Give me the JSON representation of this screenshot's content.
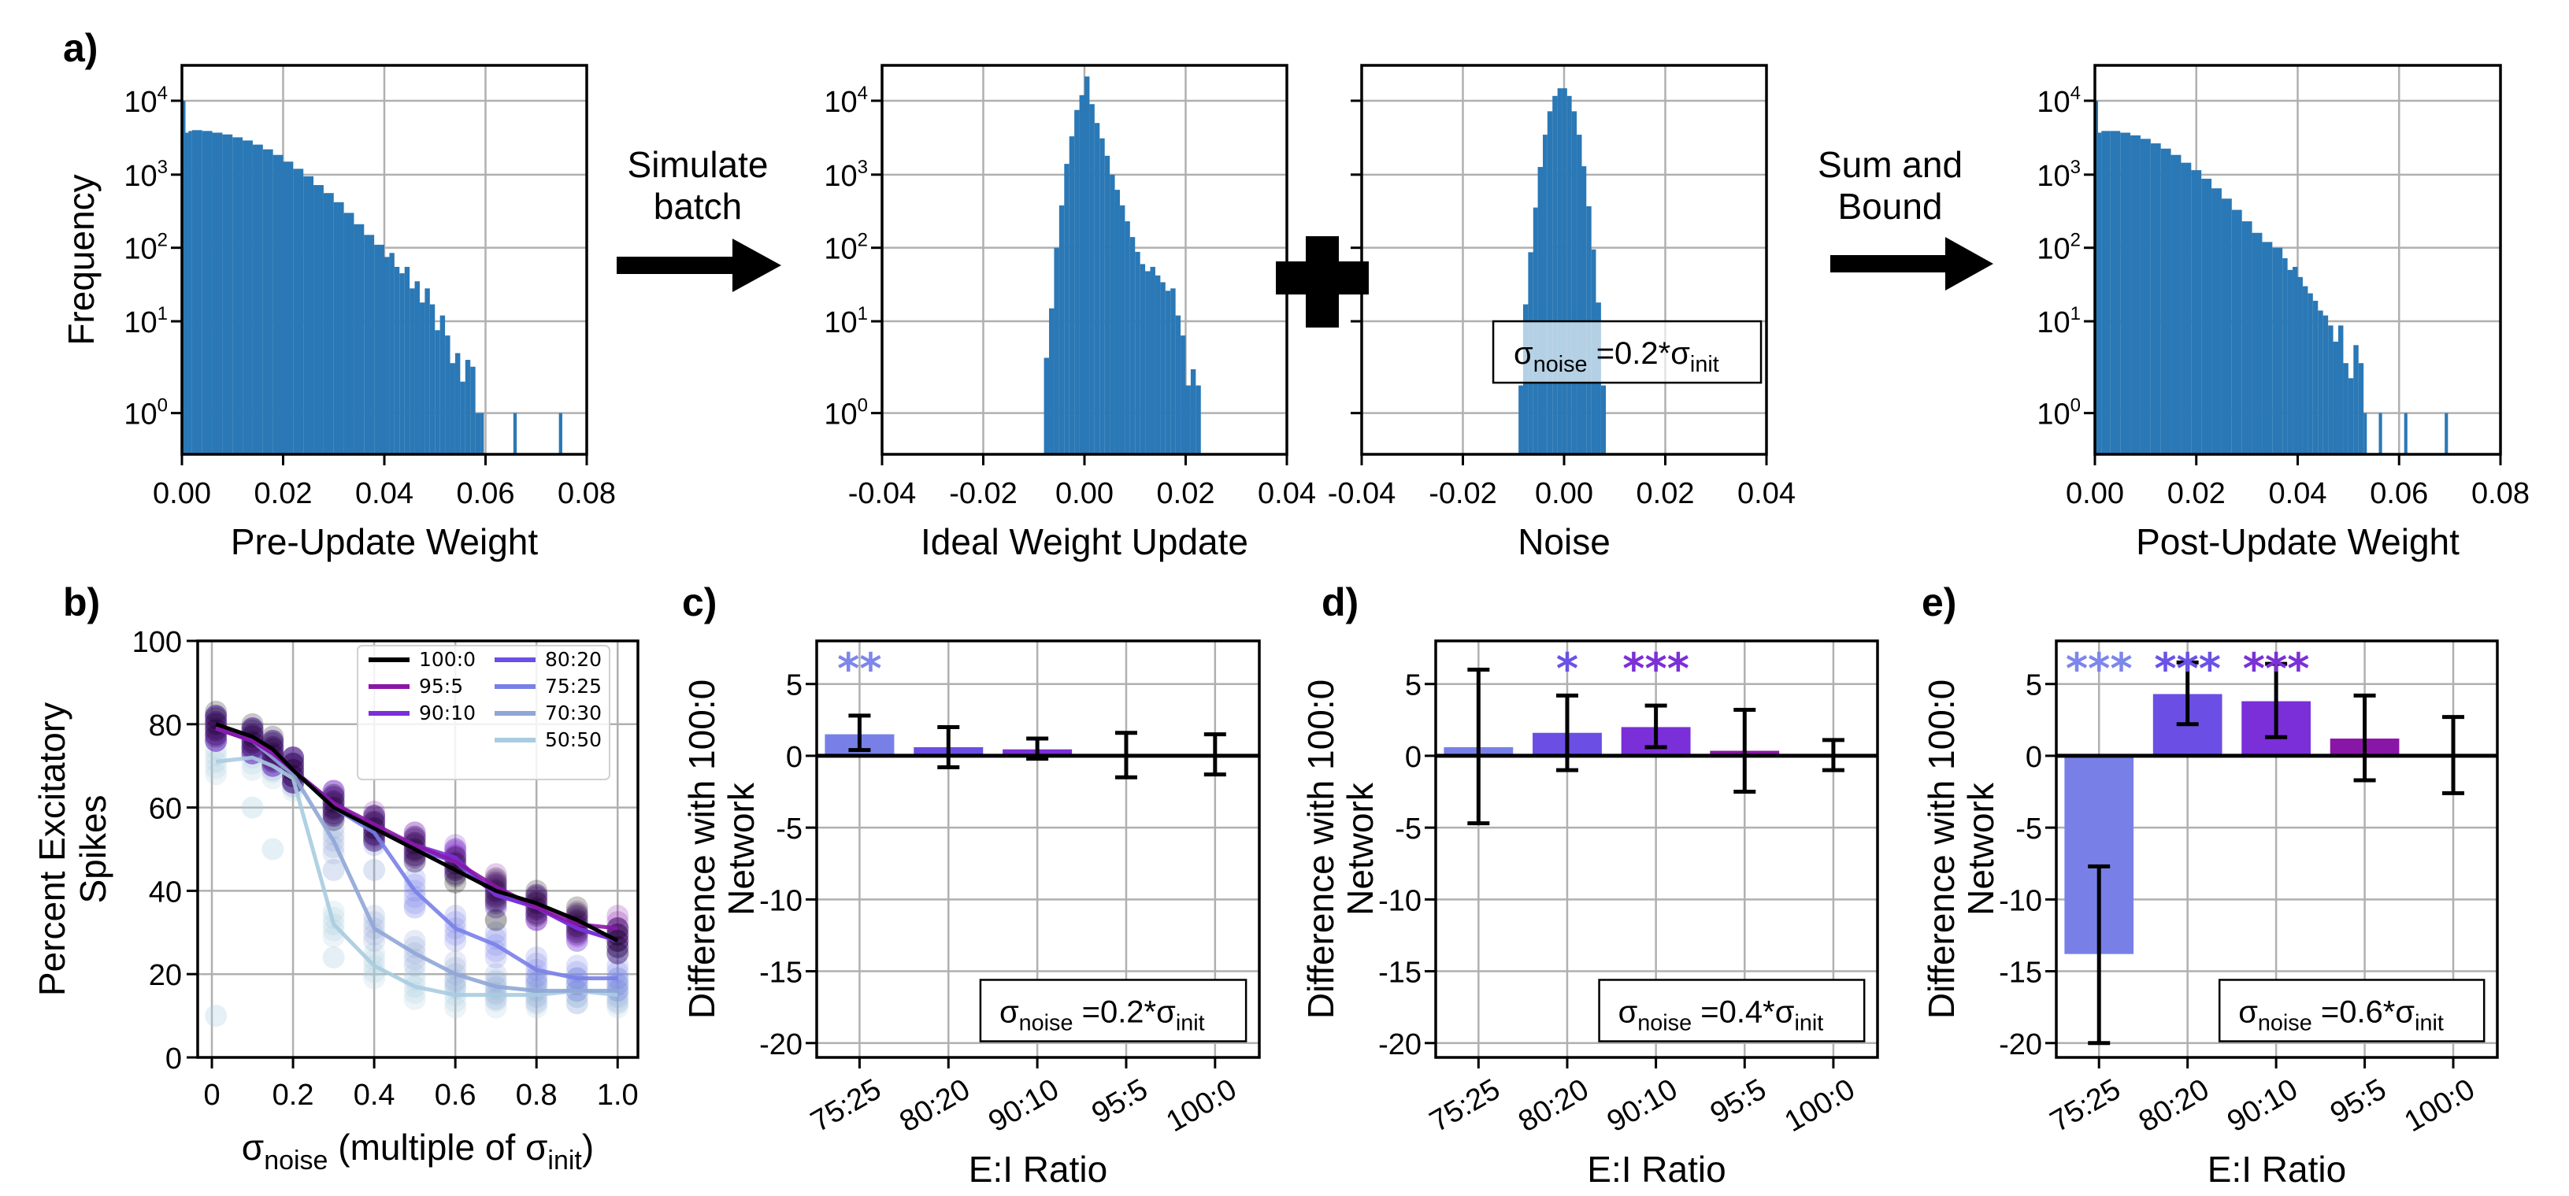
{
  "figure": {
    "panel_labels": [
      "a)",
      "b)",
      "c)",
      "d)",
      "e)"
    ],
    "flow_labels": {
      "simulate": [
        "Simulate",
        "batch"
      ],
      "sum_bound": [
        "Sum and",
        "Bound"
      ],
      "plus_icon": "plus-icon",
      "arrow_icon": "arrow-right-icon"
    },
    "colors": {
      "hist": "#2a78b5",
      "ratio_100_0": "#000000",
      "ratio_95_5": "#8a16a8",
      "ratio_90_10": "#7a2fd8",
      "ratio_80_20": "#6b4fe4",
      "ratio_75_25": "#7880e8",
      "ratio_70_30": "#8fa6d6",
      "ratio_50_50": "#a8cce0",
      "sig_75_25": "#7d86ea",
      "sig_80_20": "#6a52e6",
      "sig_90_10": "#7b30d6"
    }
  },
  "chart_data": [
    {
      "id": "a1",
      "type": "bar",
      "subtype": "histogram",
      "title": "",
      "xlabel": "Pre-Update Weight",
      "ylabel": "Frequency",
      "yscale": "log",
      "xlim": [
        0.0,
        0.08
      ],
      "xticks": [
        "0.00",
        "0.02",
        "0.04",
        "0.06",
        "0.08"
      ],
      "xtick_values": [
        0.0,
        0.02,
        0.04,
        0.06,
        0.08
      ],
      "yticks": [
        "10^0",
        "10^1",
        "10^2",
        "10^3",
        "10^4"
      ],
      "grid": true,
      "bin_width": 0.00067,
      "bins": [
        [
          0.0,
          10000
        ],
        [
          0.0007,
          3700
        ],
        [
          0.0013,
          3900
        ],
        [
          0.002,
          4000
        ],
        [
          0.004,
          3900
        ],
        [
          0.006,
          3700
        ],
        [
          0.008,
          3500
        ],
        [
          0.01,
          3200
        ],
        [
          0.012,
          2900
        ],
        [
          0.014,
          2550
        ],
        [
          0.016,
          2200
        ],
        [
          0.018,
          1850
        ],
        [
          0.02,
          1500
        ],
        [
          0.022,
          1200
        ],
        [
          0.024,
          950
        ],
        [
          0.026,
          720
        ],
        [
          0.028,
          560
        ],
        [
          0.03,
          420
        ],
        [
          0.032,
          300
        ],
        [
          0.034,
          210
        ],
        [
          0.036,
          150
        ],
        [
          0.038,
          110
        ],
        [
          0.04,
          75
        ],
        [
          0.041,
          85
        ],
        [
          0.042,
          55
        ],
        [
          0.043,
          45
        ],
        [
          0.044,
          55
        ],
        [
          0.045,
          28
        ],
        [
          0.046,
          35
        ],
        [
          0.047,
          18
        ],
        [
          0.048,
          28
        ],
        [
          0.049,
          17
        ],
        [
          0.05,
          8
        ],
        [
          0.051,
          12
        ],
        [
          0.052,
          7
        ],
        [
          0.053,
          3.5
        ],
        [
          0.054,
          4.5
        ],
        [
          0.055,
          2.2
        ],
        [
          0.056,
          3.8
        ],
        [
          0.057,
          3.2
        ],
        [
          0.058,
          1
        ],
        [
          0.059,
          1
        ],
        [
          0.0655,
          1
        ],
        [
          0.0745,
          1
        ]
      ]
    },
    {
      "id": "a2",
      "type": "bar",
      "subtype": "histogram",
      "xlabel": "Ideal Weight Update",
      "ylabel": "",
      "yscale": "log",
      "xlim": [
        -0.04,
        0.04
      ],
      "xticks": [
        "-0.04",
        "-0.02",
        "0.00",
        "0.02",
        "0.04"
      ],
      "xtick_values": [
        -0.04,
        -0.02,
        0.0,
        0.02,
        0.04
      ],
      "yticks": [
        "10^0",
        "10^1",
        "10^2",
        "10^3",
        "10^4"
      ],
      "grid": true,
      "bin_width": 0.001,
      "bins": [
        [
          -0.008,
          4
        ],
        [
          -0.007,
          15
        ],
        [
          -0.006,
          100
        ],
        [
          -0.005,
          380
        ],
        [
          -0.004,
          1400
        ],
        [
          -0.003,
          3300
        ],
        [
          -0.002,
          7500
        ],
        [
          -0.001,
          12000
        ],
        [
          0.0,
          22000
        ],
        [
          0.001,
          9000
        ],
        [
          0.002,
          5000
        ],
        [
          0.003,
          3100
        ],
        [
          0.004,
          1800
        ],
        [
          0.005,
          1000
        ],
        [
          0.006,
          620
        ],
        [
          0.007,
          380
        ],
        [
          0.008,
          230
        ],
        [
          0.009,
          140
        ],
        [
          0.01,
          88
        ],
        [
          0.011,
          60
        ],
        [
          0.012,
          48
        ],
        [
          0.013,
          55
        ],
        [
          0.014,
          42
        ],
        [
          0.015,
          34
        ],
        [
          0.016,
          26
        ],
        [
          0.017,
          28
        ],
        [
          0.018,
          12
        ],
        [
          0.019,
          7
        ],
        [
          0.02,
          2
        ],
        [
          0.021,
          3
        ],
        [
          0.022,
          2
        ]
      ]
    },
    {
      "id": "a3",
      "type": "bar",
      "subtype": "histogram",
      "xlabel": "Noise",
      "ylabel": "",
      "yscale": "log",
      "xlim": [
        -0.04,
        0.04
      ],
      "xticks": [
        "-0.04",
        "-0.02",
        "0.00",
        "0.02",
        "0.04"
      ],
      "xtick_values": [
        -0.04,
        -0.02,
        0.0,
        0.02,
        0.04
      ],
      "grid": true,
      "bin_width": 0.00096,
      "bins": [
        [
          -0.009,
          2
        ],
        [
          -0.0081,
          17
        ],
        [
          -0.0071,
          87
        ],
        [
          -0.0061,
          355
        ],
        [
          -0.0052,
          1270
        ],
        [
          -0.0042,
          3470
        ],
        [
          -0.0033,
          7200
        ],
        [
          -0.0023,
          11700
        ],
        [
          -0.0013,
          15000
        ],
        [
          -0.0004,
          15000
        ],
        [
          0.0006,
          11700
        ],
        [
          0.0015,
          7200
        ],
        [
          0.0025,
          3470
        ],
        [
          0.0035,
          1300
        ],
        [
          0.0044,
          370
        ],
        [
          0.0054,
          95
        ],
        [
          0.0063,
          18
        ],
        [
          0.0073,
          2
        ]
      ],
      "annotation": {
        "sigma": "σ",
        "sub": "noise",
        "mid": " =0.2*σ",
        "sub2": "init"
      }
    },
    {
      "id": "a4",
      "type": "bar",
      "subtype": "histogram",
      "xlabel": "Post-Update Weight",
      "ylabel": "",
      "yscale": "log",
      "xlim": [
        0.0,
        0.08
      ],
      "xticks": [
        "0.00",
        "0.02",
        "0.04",
        "0.06",
        "0.08"
      ],
      "xtick_values": [
        0.0,
        0.02,
        0.04,
        0.06,
        0.08
      ],
      "yticks": [
        "10^0",
        "10^1",
        "10^2",
        "10^3",
        "10^4"
      ],
      "grid": true,
      "bin_width": 0.00064,
      "bins": [
        [
          0.0,
          10000
        ],
        [
          0.0006,
          3700
        ],
        [
          0.0013,
          3900
        ],
        [
          0.003,
          3900
        ],
        [
          0.005,
          3700
        ],
        [
          0.007,
          3400
        ],
        [
          0.009,
          3050
        ],
        [
          0.011,
          2650
        ],
        [
          0.013,
          2250
        ],
        [
          0.015,
          1850
        ],
        [
          0.017,
          1450
        ],
        [
          0.019,
          1150
        ],
        [
          0.021,
          880
        ],
        [
          0.023,
          650
        ],
        [
          0.025,
          470
        ],
        [
          0.027,
          330
        ],
        [
          0.029,
          230
        ],
        [
          0.031,
          160
        ],
        [
          0.033,
          120
        ],
        [
          0.035,
          100
        ],
        [
          0.037,
          72
        ],
        [
          0.038,
          50
        ],
        [
          0.039,
          55
        ],
        [
          0.04,
          40
        ],
        [
          0.041,
          30
        ],
        [
          0.042,
          24
        ],
        [
          0.043,
          19
        ],
        [
          0.044,
          14
        ],
        [
          0.045,
          12
        ],
        [
          0.046,
          9
        ],
        [
          0.047,
          6
        ],
        [
          0.048,
          9
        ],
        [
          0.049,
          3.5
        ],
        [
          0.05,
          2.4
        ],
        [
          0.051,
          5.5
        ],
        [
          0.052,
          3.5
        ],
        [
          0.053,
          1
        ],
        [
          0.056,
          1
        ],
        [
          0.061,
          1
        ],
        [
          0.069,
          1
        ]
      ]
    },
    {
      "id": "b",
      "type": "line",
      "title": "",
      "xlabel": {
        "sigma": "σ",
        "sub": "noise",
        "mid": " (multiple of σ",
        "sub2": "init",
        "end": ")"
      },
      "ylabel": [
        "Percent Excitatory",
        "Spikes"
      ],
      "xlim": [
        -0.035,
        1.05
      ],
      "ylim": [
        0,
        100
      ],
      "xticks": [
        "0",
        "0.2",
        "0.4",
        "0.6",
        "0.8",
        "1.0"
      ],
      "xtick_values": [
        0,
        0.2,
        0.4,
        0.6,
        0.8,
        1.0
      ],
      "yticks": [
        "0",
        "20",
        "40",
        "60",
        "80",
        "100"
      ],
      "ytick_values": [
        0,
        20,
        40,
        60,
        80,
        100
      ],
      "grid": true,
      "legend": {
        "placement": "top-right",
        "ncol": 2
      },
      "x": [
        0.01,
        0.1,
        0.15,
        0.2,
        0.3,
        0.4,
        0.5,
        0.6,
        0.7,
        0.8,
        0.9,
        1.0
      ],
      "series": [
        {
          "name": "100:0",
          "color_key": "ratio_100_0",
          "values": [
            80,
            77,
            74,
            69,
            60,
            55,
            50,
            45,
            40,
            37,
            33,
            28
          ]
        },
        {
          "name": "95:5",
          "color_key": "ratio_95_5",
          "values": [
            79,
            76,
            73,
            69,
            61,
            56,
            51,
            47,
            41,
            36,
            32,
            31
          ]
        },
        {
          "name": "90:10",
          "color_key": "ratio_90_10",
          "values": [
            79,
            76,
            73,
            69,
            61,
            55,
            51,
            48,
            39,
            36,
            31,
            28
          ]
        },
        {
          "name": "80:20",
          "color_key": "ratio_80_20",
          "values": [
            79,
            76,
            73,
            69,
            61,
            55,
            50,
            47,
            39,
            36,
            31,
            28
          ]
        },
        {
          "name": "75:25",
          "color_key": "ratio_75_25",
          "values": [
            79,
            76,
            73,
            69,
            60,
            54,
            40,
            31,
            27,
            21,
            19,
            19
          ]
        },
        {
          "name": "70:30",
          "color_key": "ratio_70_30",
          "values": [
            79,
            76,
            72,
            68,
            52,
            31,
            25,
            20,
            17,
            16,
            16,
            16
          ]
        },
        {
          "name": "50:50",
          "color_key": "ratio_50_50",
          "values": [
            71,
            72,
            70,
            67,
            32,
            22,
            17,
            15,
            15,
            15,
            16,
            15
          ]
        }
      ],
      "outliers": [
        {
          "series": "50:50",
          "x": 0.01,
          "y": 10
        },
        {
          "series": "50:50",
          "x": 0.1,
          "y": 60
        },
        {
          "series": "50:50",
          "x": 0.15,
          "y": 50
        },
        {
          "series": "70:30",
          "x": 0.3,
          "y": 45
        },
        {
          "series": "70:30",
          "x": 0.4,
          "y": 45
        },
        {
          "series": "50:50",
          "x": 0.3,
          "y": 24
        },
        {
          "series": "75:25",
          "x": 0.5,
          "y": 36
        },
        {
          "series": "100:0",
          "x": 0.7,
          "y": 33
        }
      ]
    },
    {
      "id": "c",
      "type": "bar",
      "xlabel": "E:I Ratio",
      "ylabel": [
        "Difference with 100:0",
        "Network"
      ],
      "ylim": [
        -21,
        8
      ],
      "yticks": [
        "-20",
        "-15",
        "-10",
        "-5",
        "0",
        "5"
      ],
      "ytick_values": [
        -20,
        -15,
        -10,
        -5,
        0,
        5
      ],
      "grid": true,
      "categories": [
        "75:25",
        "80:20",
        "90:10",
        "95:5",
        "100:0"
      ],
      "color_keys": [
        "ratio_75_25",
        "ratio_80_20",
        "ratio_90_10",
        "ratio_95_5",
        "ratio_100_0"
      ],
      "values": [
        1.5,
        0.6,
        0.45,
        0.0,
        0.0
      ],
      "err_low": [
        0.4,
        -0.8,
        -0.2,
        -1.5,
        -1.3
      ],
      "err_high": [
        2.8,
        2.0,
        1.2,
        1.6,
        1.5
      ],
      "significance": [
        "**",
        "",
        "",
        "",
        ""
      ],
      "annotation": {
        "sigma": "σ",
        "sub": "noise",
        "mid": " =0.2*σ",
        "sub2": "init"
      }
    },
    {
      "id": "d",
      "type": "bar",
      "xlabel": "E:I Ratio",
      "ylabel": [
        "Difference with 100:0",
        "Network"
      ],
      "ylim": [
        -21,
        8
      ],
      "yticks": [
        "-20",
        "-15",
        "-10",
        "-5",
        "0",
        "5"
      ],
      "ytick_values": [
        -20,
        -15,
        -10,
        -5,
        0,
        5
      ],
      "grid": true,
      "categories": [
        "75:25",
        "80:20",
        "90:10",
        "95:5",
        "100:0"
      ],
      "color_keys": [
        "ratio_75_25",
        "ratio_80_20",
        "ratio_90_10",
        "ratio_95_5",
        "ratio_100_0"
      ],
      "values": [
        0.6,
        1.6,
        2.0,
        0.35,
        0.0
      ],
      "err_low": [
        -4.7,
        -1.0,
        0.6,
        -2.5,
        -1.0
      ],
      "err_high": [
        6.0,
        4.2,
        3.5,
        3.2,
        1.1
      ],
      "significance": [
        "",
        "*",
        "***",
        "",
        ""
      ],
      "annotation": {
        "sigma": "σ",
        "sub": "noise",
        "mid": " =0.4*σ",
        "sub2": "init"
      }
    },
    {
      "id": "e",
      "type": "bar",
      "xlabel": "E:I Ratio",
      "ylabel": [
        "Difference with 100:0",
        "Network"
      ],
      "ylim": [
        -21,
        8
      ],
      "yticks": [
        "-20",
        "-15",
        "-10",
        "-5",
        "0",
        "5"
      ],
      "ytick_values": [
        -20,
        -15,
        -10,
        -5,
        0,
        5
      ],
      "grid": true,
      "categories": [
        "75:25",
        "80:20",
        "90:10",
        "95:5",
        "100:0"
      ],
      "color_keys": [
        "ratio_75_25",
        "ratio_80_20",
        "ratio_90_10",
        "ratio_95_5",
        "ratio_100_0"
      ],
      "values": [
        -13.8,
        4.3,
        3.8,
        1.2,
        0.0
      ],
      "err_low": [
        -20.0,
        2.2,
        1.3,
        -1.7,
        -2.6
      ],
      "err_high": [
        -7.7,
        6.5,
        6.4,
        4.2,
        2.7
      ],
      "significance": [
        "***",
        "***",
        "***",
        "",
        ""
      ],
      "annotation": {
        "sigma": "σ",
        "sub": "noise",
        "mid": " =0.6*σ",
        "sub2": "init"
      }
    }
  ]
}
